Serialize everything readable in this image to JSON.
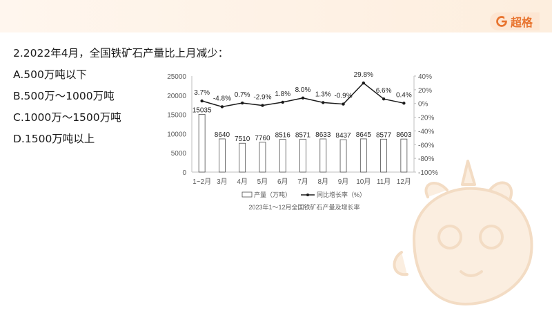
{
  "brand": {
    "logo_text": "超格",
    "accent": "#e8732e"
  },
  "question": {
    "stem": "2.2022年4月，全国铁矿石产量比上月减少：",
    "options": [
      "A.500万吨以下",
      "B.500万～1000万吨",
      "C.1000万～1500万吨",
      "D.1500万吨以上"
    ]
  },
  "chart_data": {
    "type": "bar+line",
    "title": "2023年1～12月全国铁矿石产量及增长率",
    "categories": [
      "1~2月",
      "3月",
      "4月",
      "5月",
      "6月",
      "7月",
      "8月",
      "9月",
      "10月",
      "11月",
      "12月"
    ],
    "series": [
      {
        "name": "产量（万吨）",
        "type": "bar",
        "axis": "left",
        "values": [
          15035,
          8640,
          7510,
          7760,
          8516,
          8571,
          8633,
          8437,
          8645,
          8577,
          8603
        ],
        "labels": [
          "15035",
          "8640",
          "7510",
          "7760",
          "8516",
          "8571",
          "8633",
          "8437",
          "8645",
          "8577",
          "8603"
        ]
      },
      {
        "name": "同比增长率（%）",
        "type": "line",
        "axis": "right",
        "values": [
          3.7,
          -4.8,
          0.7,
          -2.9,
          1.8,
          8.0,
          1.3,
          -0.9,
          29.8,
          6.6,
          0.4
        ],
        "labels": [
          "3.7%",
          "-4.8%",
          "0.7%",
          "-2.9%",
          "1.8%",
          "8.0%",
          "1.3%",
          "-0.9%",
          "29.8%",
          "6.6%",
          "0.4%"
        ]
      }
    ],
    "y_left": {
      "range": [
        0,
        25000
      ],
      "ticks": [
        0,
        5000,
        10000,
        15000,
        20000,
        25000
      ],
      "tick_labels": [
        "0",
        "5000",
        "10000",
        "15000",
        "20000",
        "25000"
      ]
    },
    "y_right": {
      "range": [
        -100,
        40
      ],
      "ticks": [
        40,
        20,
        0,
        -20,
        -40,
        -60,
        -80,
        -100
      ],
      "tick_labels": [
        "40%",
        "20%",
        "0%",
        "-20%",
        "-40%",
        "-60%",
        "-80%",
        "-100%"
      ]
    },
    "grid": false,
    "legend": "bottom-center"
  }
}
